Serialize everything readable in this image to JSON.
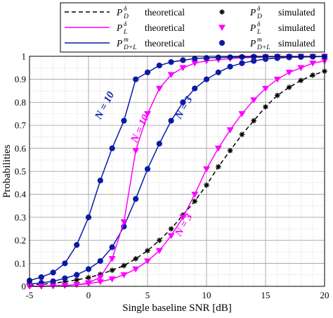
{
  "chart_data": {
    "type": "line",
    "xlabel": "Single baseline SNR [dB]",
    "ylabel": "Probabilities",
    "xlim": [
      -5,
      20
    ],
    "ylim": [
      0,
      1
    ],
    "xticks": [
      -5,
      0,
      5,
      10,
      15,
      20
    ],
    "yticks": [
      0,
      0.1,
      0.2,
      0.3,
      0.4,
      0.5,
      0.6,
      0.7,
      0.8,
      0.9,
      1
    ],
    "grid": true,
    "legend_position": "top",
    "colors": {
      "dark": "#000000",
      "magenta": "#ff00ff",
      "blue": "#0a1aa6"
    },
    "legend": [
      {
        "symbol": "P",
        "sub": "D",
        "sup": "δ",
        "text": "theoretical",
        "style": "dashed",
        "color": "#000000"
      },
      {
        "symbol": "P",
        "sub": "D",
        "sup": "δ",
        "text": "simulated",
        "marker": "asterisk",
        "color": "#000000"
      },
      {
        "symbol": "P",
        "sub": "L",
        "sup": "δ",
        "text": "theoretical",
        "style": "solid",
        "color": "#ff00ff"
      },
      {
        "symbol": "P",
        "sub": "L",
        "sup": "δ",
        "text": "simulated",
        "marker": "triangle-down",
        "color": "#ff00ff"
      },
      {
        "symbol": "P",
        "sub": "D+L",
        "sup": "m",
        "text": "theoretical",
        "style": "solid",
        "color": "#0a1aa6"
      },
      {
        "symbol": "P",
        "sub": "D+L",
        "sup": "m",
        "text": "simulated",
        "marker": "circle",
        "color": "#0a1aa6"
      }
    ],
    "series": [
      {
        "id": "pd",
        "color": "#000000",
        "line": "dashed",
        "marker": "asterisk",
        "x": [
          -5,
          -4,
          -3,
          -2,
          -1,
          0,
          1,
          2,
          3,
          4,
          5,
          6,
          7,
          8,
          9,
          10,
          11,
          12,
          13,
          14,
          15,
          16,
          17,
          18,
          19,
          20
        ],
        "y": [
          0.005,
          0.009,
          0.013,
          0.02,
          0.028,
          0.038,
          0.052,
          0.07,
          0.09,
          0.12,
          0.155,
          0.2,
          0.25,
          0.31,
          0.37,
          0.44,
          0.52,
          0.59,
          0.66,
          0.72,
          0.78,
          0.83,
          0.865,
          0.895,
          0.918,
          0.935
        ]
      },
      {
        "id": "pl",
        "color": "#ff00ff",
        "line": "solid",
        "marker": "triangle-down",
        "x": [
          -5,
          -4,
          -3,
          -2,
          -1,
          0,
          1,
          2,
          3,
          4,
          5,
          6,
          7,
          8,
          9,
          10,
          11,
          12,
          13,
          14,
          15,
          16,
          17,
          18,
          19,
          20
        ],
        "y": [
          0.0,
          0.001,
          0.002,
          0.004,
          0.007,
          0.012,
          0.02,
          0.032,
          0.05,
          0.075,
          0.11,
          0.155,
          0.22,
          0.3,
          0.4,
          0.51,
          0.6,
          0.68,
          0.75,
          0.81,
          0.86,
          0.9,
          0.93,
          0.95,
          0.97,
          0.98
        ]
      },
      {
        "id": "pdl3",
        "color": "#0a1aa6",
        "line": "solid",
        "marker": "circle",
        "x": [
          -5,
          -4,
          -3,
          -2,
          -1,
          0,
          1,
          2,
          3,
          4,
          5,
          6,
          7,
          8,
          9,
          10,
          11,
          12,
          13,
          14,
          15,
          16,
          17,
          18,
          19,
          20
        ],
        "y": [
          0.01,
          0.015,
          0.022,
          0.035,
          0.05,
          0.075,
          0.11,
          0.17,
          0.26,
          0.38,
          0.51,
          0.62,
          0.72,
          0.8,
          0.86,
          0.9,
          0.93,
          0.955,
          0.97,
          0.98,
          0.988,
          0.992,
          0.995,
          0.997,
          0.998,
          0.999
        ]
      },
      {
        "id": "pl10",
        "color": "#ff00ff",
        "line": "solid",
        "marker": "triangle-down",
        "x": [
          -5,
          -4,
          -3,
          -2,
          -1,
          0,
          1,
          2,
          3,
          4,
          5,
          6,
          7,
          8,
          9,
          10,
          11,
          12,
          13,
          14,
          15,
          16,
          17,
          18,
          19,
          20
        ],
        "y": [
          0.0,
          0.0,
          0.001,
          0.003,
          0.007,
          0.015,
          0.04,
          0.12,
          0.28,
          0.59,
          0.75,
          0.86,
          0.92,
          0.95,
          0.97,
          0.98,
          0.985,
          0.99,
          0.993,
          0.995,
          0.997,
          0.998,
          0.998,
          0.999,
          0.999,
          0.999
        ]
      },
      {
        "id": "pdl10",
        "color": "#0a1aa6",
        "line": "solid",
        "marker": "circle",
        "x": [
          -5,
          -4,
          -3,
          -2,
          -1,
          0,
          1,
          2,
          3,
          4,
          5,
          6,
          7,
          8,
          9,
          10,
          11,
          12,
          13,
          14,
          15,
          16,
          17,
          18,
          19,
          20
        ],
        "y": [
          0.025,
          0.04,
          0.06,
          0.1,
          0.18,
          0.3,
          0.46,
          0.6,
          0.72,
          0.9,
          0.93,
          0.96,
          0.975,
          0.983,
          0.99,
          0.993,
          0.995,
          0.996,
          0.997,
          0.998,
          0.998,
          0.999,
          0.999,
          0.999,
          0.999,
          0.999
        ]
      }
    ],
    "annotations": [
      {
        "text": "N = 10",
        "x": 1.6,
        "y": 0.78,
        "color": "#0a1aa6",
        "rotate": -62
      },
      {
        "text": "N = 10",
        "x": 4.6,
        "y": 0.68,
        "color": "#ff00ff",
        "rotate": -65
      },
      {
        "text": "N = 3",
        "x": 8.3,
        "y": 0.77,
        "color": "#0a1aa6",
        "rotate": -60
      },
      {
        "text": "N = 3",
        "x": 8.3,
        "y": 0.26,
        "color": "#ff00ff",
        "rotate": -60
      }
    ]
  }
}
